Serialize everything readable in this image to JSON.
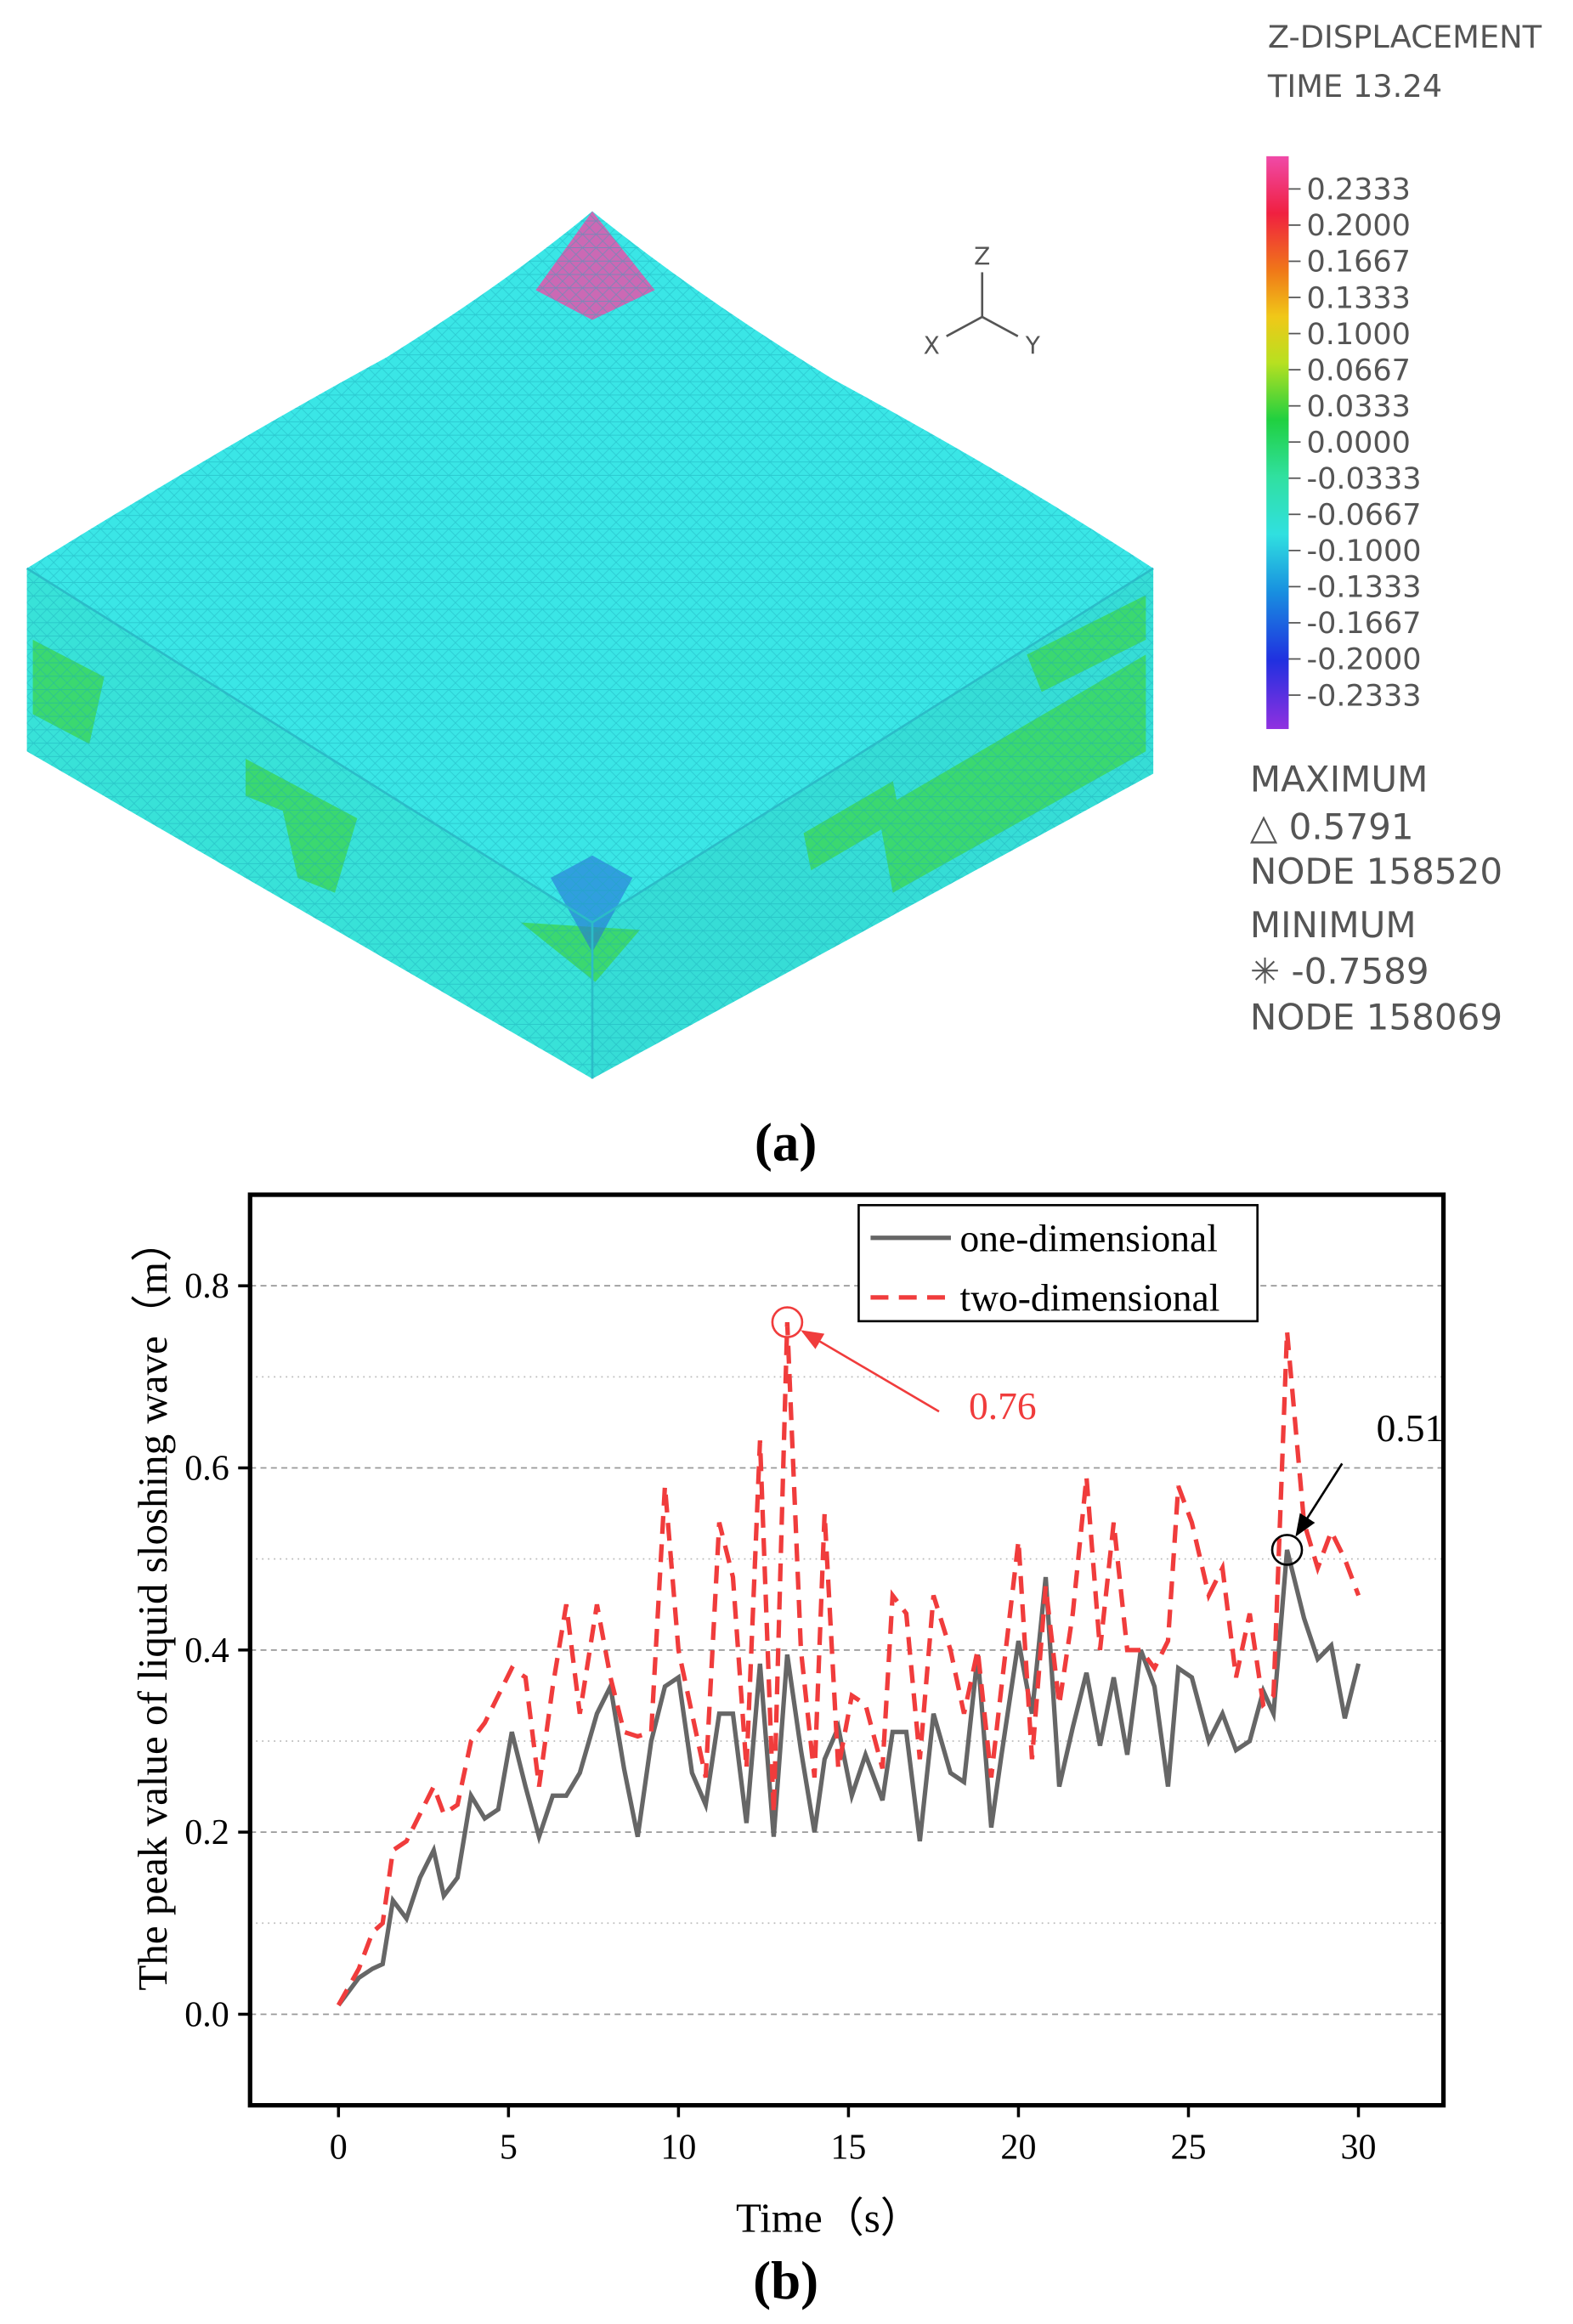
{
  "figure_a": {
    "legend_title": "Z-DISPLACEMENT",
    "time": "TIME 13.24",
    "colorbar_labels": [
      "0.2333",
      "0.2000",
      "0.1667",
      "0.1333",
      "0.1000",
      "0.0667",
      "0.0333",
      "0.0000",
      "-0.0333",
      "-0.0667",
      "-0.1000",
      "-0.1333",
      "-0.1667",
      "-0.2000",
      "-0.2333"
    ],
    "maximum_label": "MAXIMUM",
    "maximum_value": "△ 0.5791",
    "maximum_node": "NODE 158520",
    "minimum_label": "MINIMUM",
    "minimum_value": "✳ -0.7589",
    "minimum_node": "NODE 158069",
    "triad": [
      "Z",
      "X",
      "Y"
    ],
    "caption": "(a)"
  },
  "chart_data": {
    "type": "line",
    "caption": "(b)",
    "x_label": "Time（s）",
    "y_label": "The peak value of liquid sloshing wave（m）",
    "x": [
      0,
      0.6,
      1.0,
      1.3,
      1.6,
      2.0,
      2.4,
      2.8,
      3.1,
      3.5,
      3.9,
      4.3,
      4.7,
      5.1,
      5.5,
      5.9,
      6.3,
      6.7,
      7.1,
      7.6,
      8.0,
      8.4,
      8.8,
      9.2,
      9.6,
      10.0,
      10.4,
      10.8,
      11.2,
      11.6,
      12.0,
      12.4,
      12.8,
      13.2,
      13.6,
      14.0,
      14.3,
      14.7,
      15.1,
      15.5,
      16.0,
      16.3,
      16.7,
      17.1,
      17.5,
      18.0,
      18.4,
      18.8,
      19.2,
      19.5,
      20.0,
      20.4,
      20.8,
      21.2,
      21.6,
      22.0,
      22.4,
      22.8,
      23.2,
      23.6,
      24.0,
      24.4,
      24.7,
      25.1,
      25.6,
      26.0,
      26.4,
      26.8,
      27.2,
      27.5,
      27.9,
      28.4,
      28.8,
      29.2,
      29.6,
      30.0
    ],
    "series": [
      {
        "name": "one-dimensional",
        "color": "#666666",
        "dash": false,
        "values": [
          0.01,
          0.04,
          0.05,
          0.055,
          0.125,
          0.105,
          0.15,
          0.18,
          0.13,
          0.15,
          0.24,
          0.215,
          0.225,
          0.31,
          0.25,
          0.195,
          0.24,
          0.24,
          0.265,
          0.33,
          0.36,
          0.27,
          0.195,
          0.3,
          0.36,
          0.37,
          0.265,
          0.23,
          0.33,
          0.33,
          0.21,
          0.385,
          0.195,
          0.395,
          0.29,
          0.2,
          0.28,
          0.315,
          0.24,
          0.285,
          0.235,
          0.31,
          0.31,
          0.19,
          0.33,
          0.265,
          0.255,
          0.395,
          0.205,
          0.285,
          0.41,
          0.33,
          0.48,
          0.25,
          0.315,
          0.375,
          0.295,
          0.37,
          0.285,
          0.4,
          0.36,
          0.25,
          0.38,
          0.37,
          0.3,
          0.33,
          0.29,
          0.3,
          0.355,
          0.33,
          0.51,
          0.435,
          0.39,
          0.405,
          0.325,
          0.385
        ]
      },
      {
        "name": "two-dimensional",
        "color": "#f03c3c",
        "dash": true,
        "values": [
          0.01,
          0.05,
          0.09,
          0.1,
          0.18,
          0.19,
          0.22,
          0.25,
          0.22,
          0.23,
          0.3,
          0.32,
          0.35,
          0.38,
          0.37,
          0.25,
          0.36,
          0.45,
          0.33,
          0.45,
          0.37,
          0.31,
          0.305,
          0.31,
          0.58,
          0.4,
          0.33,
          0.26,
          0.54,
          0.48,
          0.27,
          0.63,
          0.22,
          0.76,
          0.4,
          0.26,
          0.55,
          0.27,
          0.35,
          0.34,
          0.27,
          0.46,
          0.44,
          0.28,
          0.46,
          0.4,
          0.33,
          0.4,
          0.26,
          0.36,
          0.52,
          0.28,
          0.47,
          0.34,
          0.44,
          0.59,
          0.4,
          0.54,
          0.4,
          0.4,
          0.38,
          0.41,
          0.58,
          0.54,
          0.46,
          0.49,
          0.37,
          0.44,
          0.34,
          0.35,
          0.75,
          0.54,
          0.49,
          0.53,
          0.5,
          0.46
        ]
      }
    ],
    "annotations": [
      {
        "text": "0.76",
        "x": 13.2,
        "y": 0.76,
        "color": "#f03c3c"
      },
      {
        "text": "0.51",
        "x": 27.9,
        "y": 0.51,
        "color": "#000000"
      }
    ],
    "xlim": [
      -2.6,
      32.5
    ],
    "ylim": [
      -0.1,
      0.9
    ],
    "xticks": [
      0,
      5,
      10,
      15,
      20,
      25,
      30
    ],
    "yticks": [
      {
        "value": 0,
        "label": "0.0"
      },
      0.2,
      0.4,
      0.6,
      0.8
    ],
    "minor_yticks": [
      0.1,
      0.3,
      0.5,
      0.7
    ],
    "grid": true,
    "legend": "upper right"
  }
}
